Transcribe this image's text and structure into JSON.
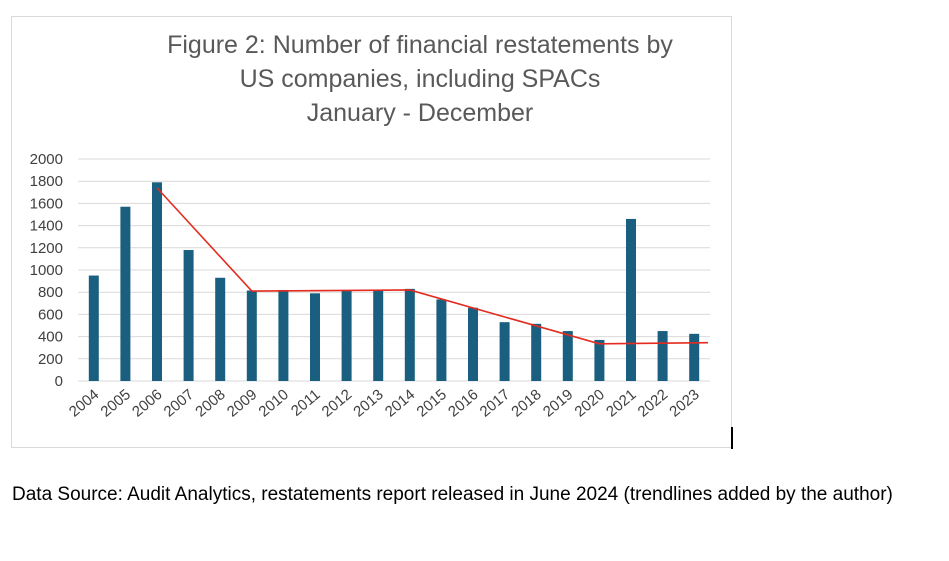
{
  "chart_data": {
    "type": "bar",
    "title": [
      "Figure 2: Number of financial restatements by",
      "US companies, including SPACs",
      "January - December"
    ],
    "categories": [
      "2004",
      "2005",
      "2006",
      "2007",
      "2008",
      "2009",
      "2010",
      "2011",
      "2012",
      "2013",
      "2014",
      "2015",
      "2016",
      "2017",
      "2018",
      "2019",
      "2020",
      "2021",
      "2022",
      "2023"
    ],
    "values": [
      950,
      1570,
      1790,
      1180,
      930,
      815,
      820,
      790,
      815,
      815,
      830,
      735,
      660,
      530,
      515,
      450,
      370,
      1460,
      450,
      425
    ],
    "ylim": [
      0,
      2000
    ],
    "yticks": [
      0,
      200,
      400,
      600,
      800,
      1000,
      1200,
      1400,
      1600,
      1800,
      2000
    ],
    "bar_color": "#1a5f7f",
    "grid": true,
    "trendlines": [
      {
        "name": "trendline",
        "color": "#e32b1f",
        "points": [
          {
            "x": "2006",
            "y": 1740
          },
          {
            "x": "2009",
            "y": 810
          },
          {
            "x": "2014",
            "y": 820
          },
          {
            "x": "2020",
            "y": 335
          },
          {
            "x": "2023",
            "y": 345
          }
        ]
      }
    ]
  },
  "source_text": "Data Source: Audit Analytics, restatements report released in June 2024 (trendlines added by the author)"
}
